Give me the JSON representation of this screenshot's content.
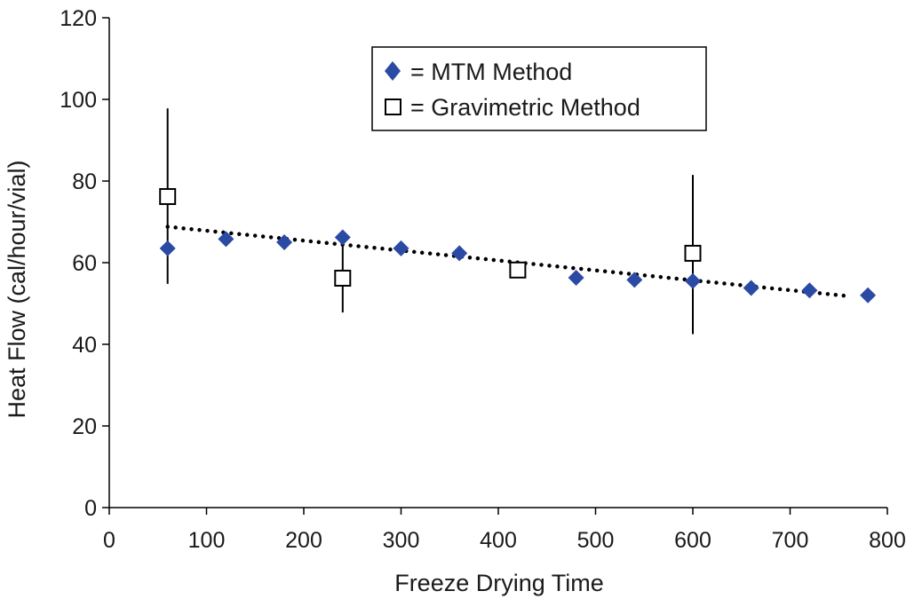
{
  "chart_data": {
    "type": "scatter",
    "title": "",
    "xlabel": "Freeze Drying Time",
    "ylabel": "Heat Flow (cal/hour/vial)",
    "xlim": [
      0,
      800
    ],
    "ylim": [
      0,
      120
    ],
    "xticks": [
      0,
      100,
      200,
      300,
      400,
      500,
      600,
      700,
      800
    ],
    "yticks": [
      0,
      20,
      40,
      60,
      80,
      100,
      120
    ],
    "grid": false,
    "legend_position": "top-right",
    "legend": [
      {
        "marker": "diamond",
        "label": "= MTM Method"
      },
      {
        "marker": "open-square",
        "label": "= Gravimetric Method"
      }
    ],
    "series": [
      {
        "marker": "diamond",
        "color": "#2b4aa3",
        "x": [
          60,
          120,
          180,
          240,
          300,
          360,
          480,
          540,
          600,
          660,
          720,
          780
        ],
        "y": [
          63.5,
          65.8,
          65,
          66.2,
          63.5,
          62.3,
          56.3,
          55.8,
          55.5,
          53.8,
          53.2,
          52
        ]
      },
      {
        "marker": "open-square",
        "color": "#000000",
        "x": [
          60,
          240,
          420,
          600
        ],
        "y": [
          76.2,
          56.2,
          58.2,
          62.3
        ],
        "error_low": [
          54.8,
          47.8,
          null,
          42.5
        ],
        "error_high": [
          97.8,
          65,
          null,
          81.5
        ]
      }
    ],
    "trendline": {
      "style": "dotted",
      "color": "#000000",
      "x": [
        60,
        760
      ],
      "y": [
        68.8,
        51.8
      ]
    }
  }
}
